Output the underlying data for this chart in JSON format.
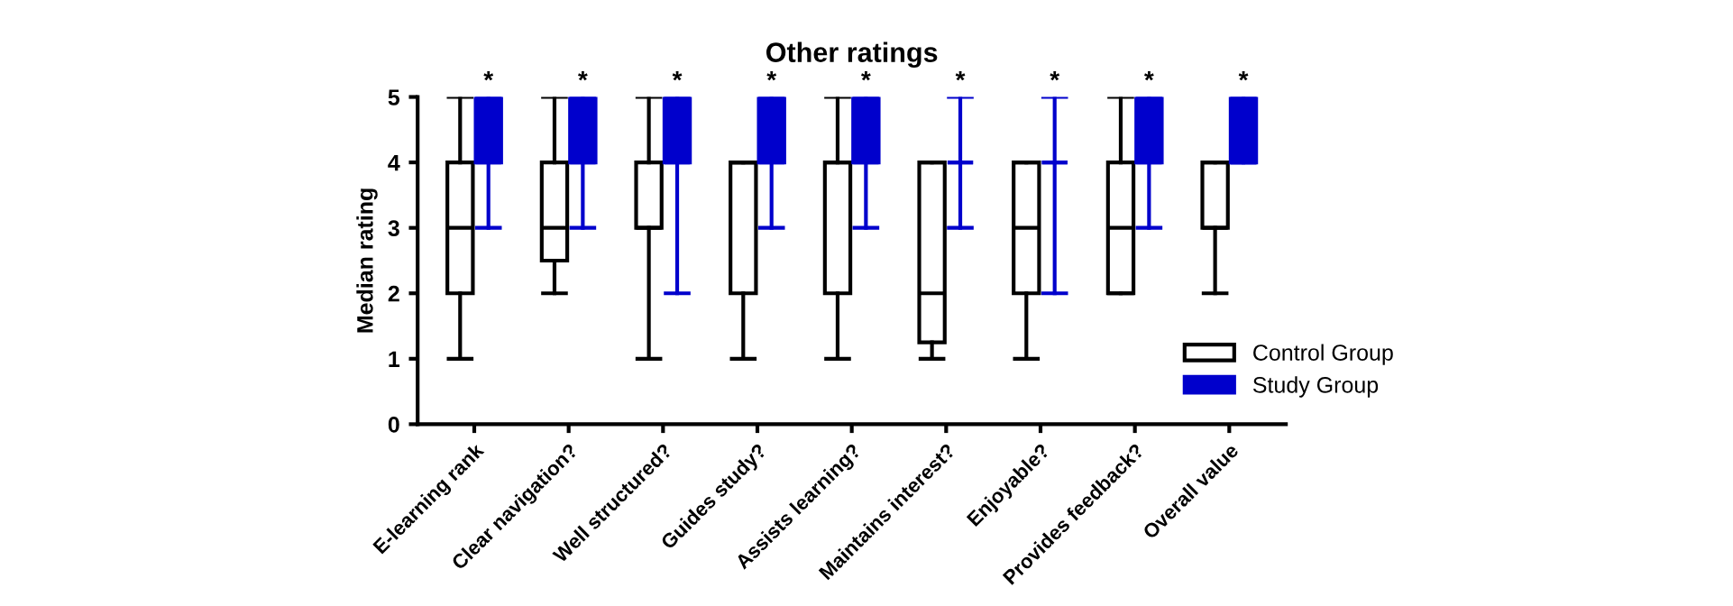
{
  "chart_data": {
    "type": "box",
    "title": "Other ratings",
    "ylabel": "Median rating",
    "categories": [
      "E-learning rank",
      "Clear navigation?",
      "Well structured?",
      "Guides study?",
      "Assists learning?",
      "Maintains interest?",
      "Enjoyable?",
      "Provides feedback?",
      "Overall value"
    ],
    "series": [
      {
        "name": "Control Group",
        "color": "#ffffff",
        "boxes": [
          {
            "low": 1,
            "q1": 2,
            "median": 3,
            "q3": 4,
            "high": 5
          },
          {
            "low": 2,
            "q1": 2.5,
            "median": 3,
            "q3": 4,
            "high": 5
          },
          {
            "low": 1,
            "q1": 3,
            "median": 3,
            "q3": 4,
            "high": 5
          },
          {
            "low": 1,
            "q1": 2,
            "median": 4,
            "q3": 4,
            "high": 4
          },
          {
            "low": 1,
            "q1": 2,
            "median": 4,
            "q3": 4,
            "high": 5
          },
          {
            "low": 1,
            "q1": 1.25,
            "median": 2,
            "q3": 4,
            "high": 4
          },
          {
            "low": 1,
            "q1": 2,
            "median": 3,
            "q3": 4,
            "high": 4
          },
          {
            "low": 2,
            "q1": 2,
            "median": 3,
            "q3": 4,
            "high": 5
          },
          {
            "low": 2,
            "q1": 3,
            "median": 3,
            "q3": 4,
            "high": 4
          }
        ]
      },
      {
        "name": "Study Group",
        "color": "#0000cc",
        "boxes": [
          {
            "low": 3,
            "q1": 4,
            "median": 4,
            "q3": 5,
            "high": 5
          },
          {
            "low": 3,
            "q1": 4,
            "median": 4,
            "q3": 5,
            "high": 5
          },
          {
            "low": 2,
            "q1": 4,
            "median": 4,
            "q3": 5,
            "high": 5
          },
          {
            "low": 3,
            "q1": 4,
            "median": 4,
            "q3": 5,
            "high": 5
          },
          {
            "low": 3,
            "q1": 4,
            "median": 4,
            "q3": 5,
            "high": 5
          },
          {
            "low": 3,
            "q1": 4,
            "median": 4,
            "q3": 4,
            "high": 5
          },
          {
            "low": 2,
            "q1": 4,
            "median": 4,
            "q3": 4,
            "high": 5
          },
          {
            "low": 3,
            "q1": 4,
            "median": 4,
            "q3": 5,
            "high": 5
          },
          {
            "low": 4,
            "q1": 4,
            "median": 4,
            "q3": 5,
            "high": 5
          }
        ]
      }
    ],
    "ylim": [
      0,
      5
    ],
    "yticks": [
      0,
      1,
      2,
      3,
      4,
      5
    ],
    "legend": "bottom right",
    "grid": false,
    "annotations": [
      "*",
      "*",
      "*",
      "*",
      "*",
      "*",
      "*",
      "*",
      "*"
    ]
  }
}
